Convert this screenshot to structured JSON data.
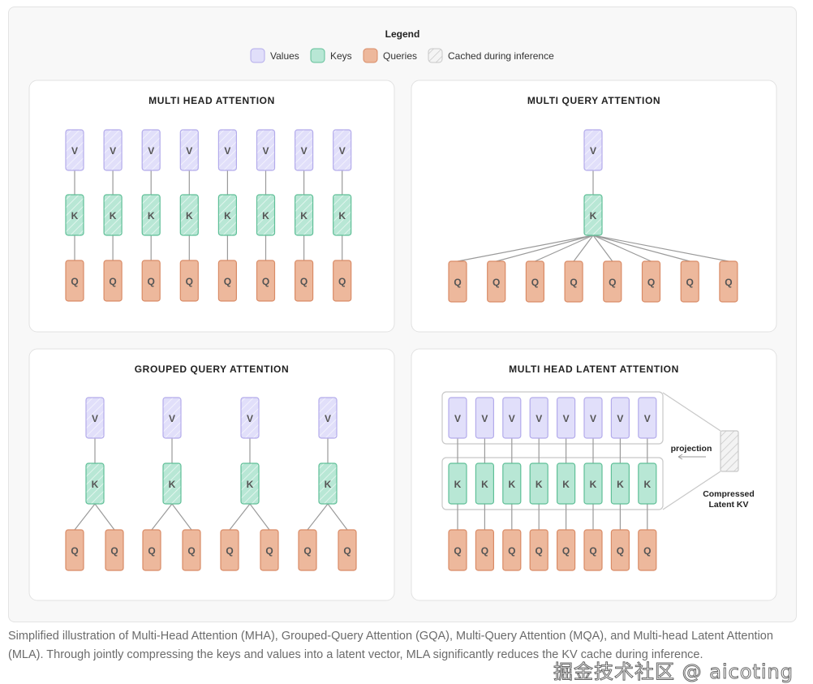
{
  "legend": {
    "title": "Legend",
    "items": [
      {
        "label": "Values",
        "kind": "values"
      },
      {
        "label": "Keys",
        "kind": "keys"
      },
      {
        "label": "Queries",
        "kind": "queries"
      },
      {
        "label": "Cached during inference",
        "kind": "cached"
      }
    ]
  },
  "colors": {
    "values": {
      "fill": "#e1dffa",
      "stroke": "#b3abeb"
    },
    "keys": {
      "fill": "#b8e7d5",
      "stroke": "#5fbf97"
    },
    "queries": {
      "fill": "#edb89c",
      "stroke": "#d98b66"
    },
    "cached": {
      "fill": "#f4f4f4",
      "stroke": "#c8c8c8"
    },
    "line": "#9a9a9a",
    "label": "#555555"
  },
  "box_labels": {
    "value": "V",
    "key": "K",
    "query": "Q"
  },
  "panels": {
    "mha": {
      "title": "MULTI HEAD ATTENTION"
    },
    "mqa": {
      "title": "MULTI QUERY ATTENTION"
    },
    "gqa": {
      "title": "GROUPED QUERY ATTENTION"
    },
    "mla": {
      "title": "MULTI HEAD LATENT ATTENTION",
      "projection_label": "projection",
      "latent_label_line1": "Compressed",
      "latent_label_line2": "Latent KV"
    }
  },
  "caption": "Simplified illustration of Multi-Head Attention (MHA), Grouped-Query Attention (GQA), Multi-Query Attention (MQA), and Multi-head Latent Attention (MLA). Through jointly compressing the keys and values into a latent vector, MLA significantly reduces the KV cache during inference.",
  "watermark": "掘金技术社区 @ aicoting"
}
